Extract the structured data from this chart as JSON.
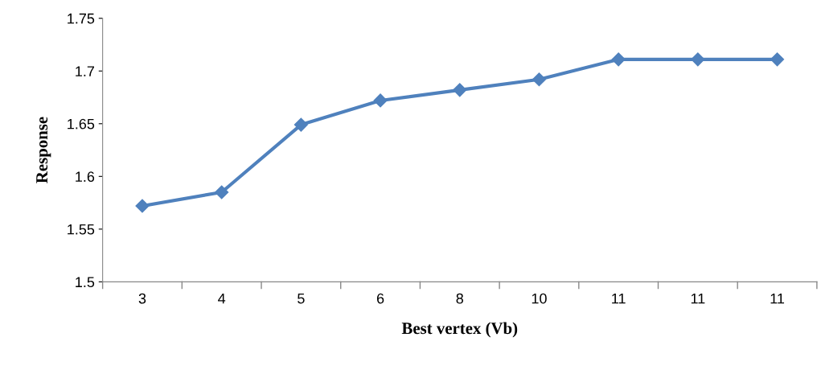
{
  "chart_data": {
    "type": "line",
    "xlabel": "Best vertex (Vb)",
    "ylabel": "Response",
    "categories": [
      "3",
      "4",
      "5",
      "6",
      "8",
      "10",
      "11",
      "11",
      "11"
    ],
    "series": [
      {
        "color": "#4f81bd",
        "values": [
          1.572,
          1.585,
          1.649,
          1.672,
          1.682,
          1.692,
          1.711,
          1.711,
          1.711
        ]
      }
    ],
    "ylim": [
      1.5,
      1.75
    ],
    "yticks": [
      1.5,
      1.55,
      1.6,
      1.65,
      1.7,
      1.75
    ],
    "marker": "diamond",
    "line_style": "solid",
    "grid": false,
    "legend": false
  }
}
